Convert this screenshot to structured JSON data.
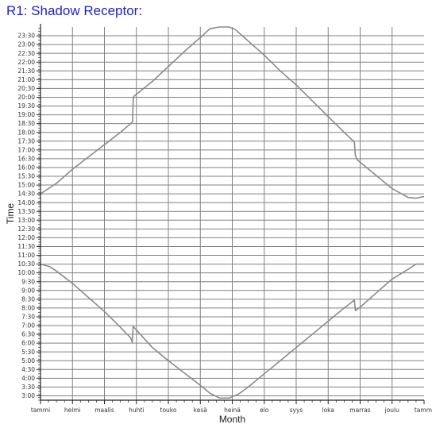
{
  "chart_data": {
    "type": "line",
    "title": "R1: Shadow Receptor:",
    "xlabel": "Month",
    "ylabel": "Time",
    "x_unit": "month index (0 = start of tammi, 12 = end of joulu)",
    "xlim": [
      0,
      12
    ],
    "ylim": [
      2.75,
      24.0
    ],
    "grid": true,
    "legend": "none",
    "colors": {
      "title": "#1f1fd0",
      "line": "#8a8a8a",
      "grid": "#808080",
      "axis": "#222222"
    },
    "x_tick_labels": [
      "tammi",
      "helmi",
      "maalis",
      "huhti",
      "touko",
      "kesä",
      "heinä",
      "elo",
      "syys",
      "loka",
      "marras",
      "joulu",
      "tammi"
    ],
    "y_tick_labels": [
      "3:00",
      "3:30",
      "4:00",
      "4:30",
      "5:00",
      "5:30",
      "6:00",
      "6:30",
      "7:00",
      "7:30",
      "8:00",
      "8:30",
      "9:00",
      "9:30",
      "10:00",
      "10:30",
      "11:00",
      "11:30",
      "12:00",
      "12:30",
      "13:00",
      "13:30",
      "14:00",
      "14:30",
      "15:00",
      "15:30",
      "16:00",
      "16:30",
      "17:00",
      "17:30",
      "18:00",
      "18:30",
      "19:00",
      "19:30",
      "20:00",
      "20:30",
      "21:00",
      "21:30",
      "22:00",
      "22:30",
      "23:00",
      "23:30"
    ],
    "series": [
      {
        "id": "upper",
        "points": [
          [
            0,
            14.5
          ],
          [
            0.5,
            15.1
          ],
          [
            1,
            15.9
          ],
          [
            1.5,
            16.6
          ],
          [
            2,
            17.3
          ],
          [
            2.5,
            18.0
          ],
          [
            2.88,
            18.6
          ],
          [
            2.9,
            19.85
          ],
          [
            2.92,
            20.05
          ],
          [
            3.5,
            20.9
          ],
          [
            4,
            21.75
          ],
          [
            4.5,
            22.6
          ],
          [
            5,
            23.4
          ],
          [
            5.3,
            23.9
          ],
          [
            5.6,
            24.0
          ],
          [
            5.9,
            24.0
          ],
          [
            6.1,
            23.85
          ],
          [
            6.5,
            23.2
          ],
          [
            7,
            22.4
          ],
          [
            7.5,
            21.5
          ],
          [
            8,
            20.7
          ],
          [
            8.5,
            19.8
          ],
          [
            9,
            18.9
          ],
          [
            9.5,
            18.0
          ],
          [
            9.82,
            17.45
          ],
          [
            9.85,
            16.7
          ],
          [
            9.9,
            16.45
          ],
          [
            10.5,
            15.55
          ],
          [
            11,
            14.8
          ],
          [
            11.5,
            14.3
          ],
          [
            11.75,
            14.25
          ],
          [
            12,
            14.35
          ]
        ]
      },
      {
        "id": "lower",
        "points": [
          [
            0,
            10.5
          ],
          [
            0.3,
            10.35
          ],
          [
            0.5,
            10.1
          ],
          [
            1,
            9.4
          ],
          [
            1.5,
            8.6
          ],
          [
            2,
            7.8
          ],
          [
            2.5,
            6.9
          ],
          [
            2.82,
            6.3
          ],
          [
            2.87,
            6.05
          ],
          [
            2.9,
            6.95
          ],
          [
            3,
            6.75
          ],
          [
            3.5,
            5.75
          ],
          [
            4,
            5.0
          ],
          [
            4.5,
            4.3
          ],
          [
            5,
            3.6
          ],
          [
            5.3,
            3.15
          ],
          [
            5.6,
            2.87
          ],
          [
            5.9,
            2.87
          ],
          [
            6.2,
            3.1
          ],
          [
            6.5,
            3.5
          ],
          [
            7,
            4.25
          ],
          [
            7.5,
            5.0
          ],
          [
            8,
            5.75
          ],
          [
            8.5,
            6.5
          ],
          [
            9,
            7.25
          ],
          [
            9.5,
            8.0
          ],
          [
            9.82,
            8.45
          ],
          [
            9.85,
            7.85
          ],
          [
            10,
            8.05
          ],
          [
            10.5,
            8.85
          ],
          [
            11,
            9.65
          ],
          [
            11.5,
            10.2
          ],
          [
            11.75,
            10.5
          ],
          [
            12,
            10.5
          ]
        ]
      }
    ]
  }
}
